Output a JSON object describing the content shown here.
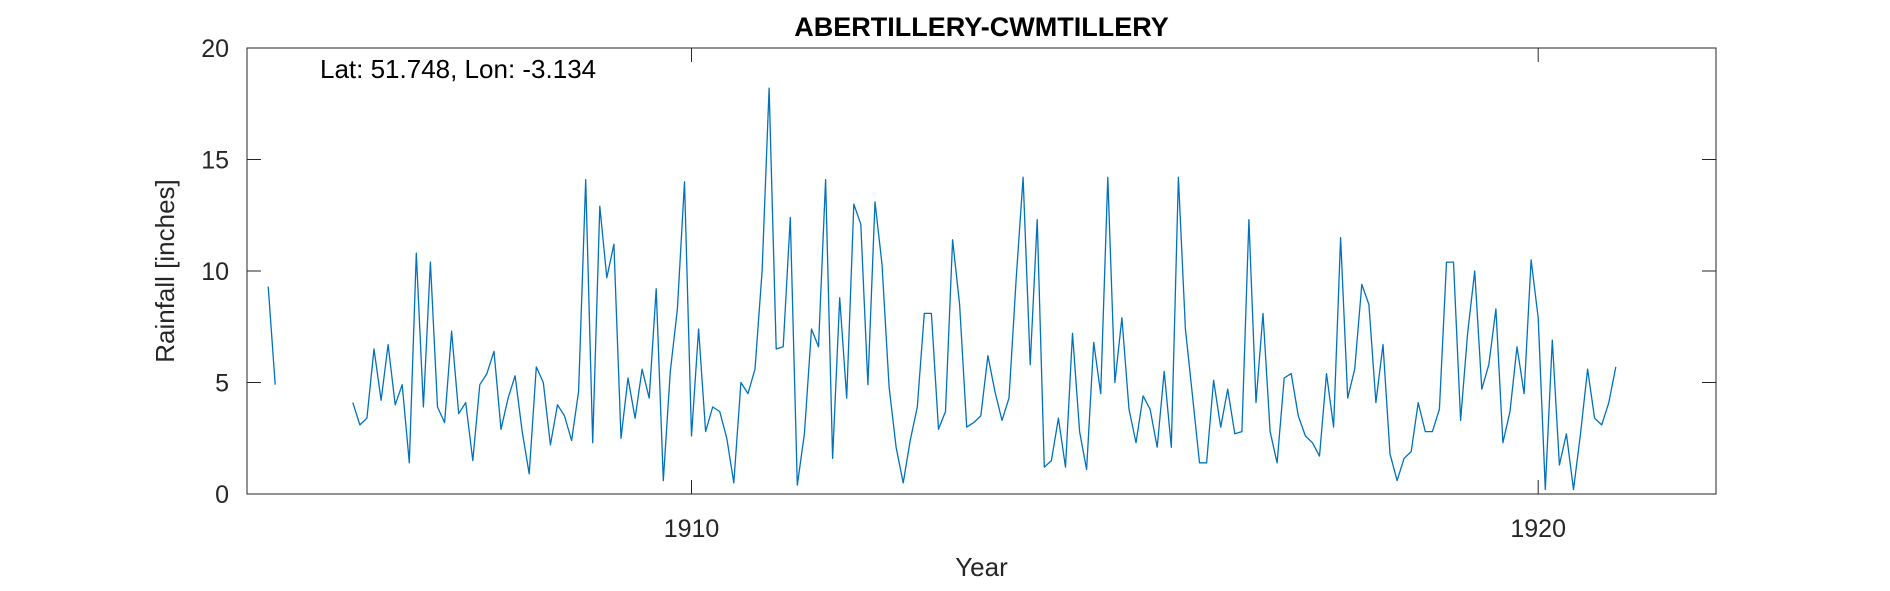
{
  "chart_data": {
    "type": "line",
    "title": "ABERTILLERY-CWMTILLERY",
    "annotation": "Lat: 51.748, Lon: -3.134",
    "xlabel": "Year",
    "ylabel": "Rainfall [inches]",
    "xlim": [
      1904.75,
      1922.1
    ],
    "ylim": [
      0,
      20
    ],
    "xticks": [
      1910,
      1920
    ],
    "xtick_labels": [
      "1910",
      "1920"
    ],
    "yticks": [
      0,
      5,
      10,
      15,
      20
    ],
    "ytick_labels": [
      "0",
      "5",
      "10",
      "15",
      "20"
    ],
    "grid": false,
    "line_color": "#0072BD",
    "series": [
      {
        "start_year": 1905,
        "values": [
          9.3,
          4.9,
          null,
          null,
          null,
          null,
          null,
          null,
          null,
          null,
          null,
          null,
          4.1,
          3.1,
          3.4,
          6.5,
          4.2,
          6.7,
          4.0,
          4.9,
          1.4,
          10.8,
          3.9,
          10.4,
          3.9,
          3.2,
          7.3,
          3.6,
          4.1,
          1.5,
          4.9,
          5.4,
          6.4,
          2.9,
          4.3,
          5.3,
          2.8,
          0.9,
          5.7,
          5.0,
          2.2,
          4.0,
          3.5,
          2.4,
          4.6,
          14.1,
          2.3,
          12.9,
          9.7,
          11.2,
          2.5,
          5.2,
          3.4,
          5.6,
          4.3,
          9.2,
          0.6,
          5.5,
          8.3,
          14.0,
          2.6,
          7.4,
          2.8,
          3.9,
          3.7,
          2.5,
          0.5,
          5.0,
          4.5,
          5.6,
          10.0,
          18.2,
          6.5,
          6.6,
          12.4,
          0.4,
          2.7,
          7.4,
          6.6,
          14.1,
          1.6,
          8.8,
          4.3,
          13.0,
          12.1,
          4.9,
          13.1,
          10.3,
          4.8,
          2.1,
          0.5,
          2.4,
          3.9,
          8.1,
          8.1,
          2.9,
          3.7,
          11.4,
          8.5,
          3.0,
          3.2,
          3.5,
          6.2,
          4.6,
          3.3,
          4.3,
          9.6,
          14.2,
          5.8,
          12.3,
          1.2,
          1.5,
          3.4,
          1.2,
          7.2,
          2.8,
          1.1,
          6.8,
          4.5,
          14.2,
          5.0,
          7.9,
          3.8,
          2.3,
          4.4,
          3.8,
          2.1,
          5.5,
          2.1,
          14.2,
          7.4,
          4.4,
          1.4,
          1.4,
          5.1,
          3.0,
          4.7,
          2.7,
          2.8,
          12.3,
          4.1,
          8.1,
          2.8,
          1.4,
          5.2,
          5.4,
          3.5,
          2.6,
          2.3,
          1.7,
          5.4,
          3.0,
          11.5,
          4.3,
          5.6,
          9.4,
          8.5,
          4.1,
          6.7,
          1.8,
          0.6,
          1.6,
          1.9,
          4.1,
          2.8,
          2.8,
          3.8,
          10.4,
          10.4,
          3.3,
          7.2,
          10.0,
          4.7,
          5.8,
          8.3,
          2.3,
          3.7,
          6.6,
          4.5,
          10.5,
          7.9,
          0.2,
          6.9,
          1.3,
          2.7,
          0.2,
          2.7,
          5.6,
          3.4,
          3.1,
          4.1,
          5.7
        ]
      }
    ]
  }
}
